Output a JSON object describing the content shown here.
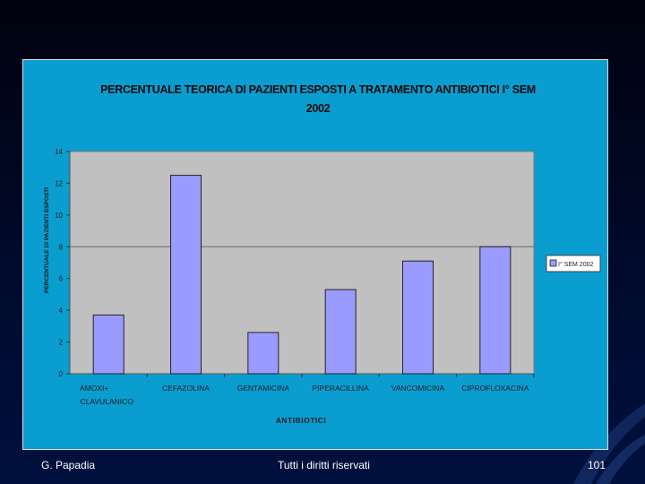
{
  "chart_data": {
    "type": "bar",
    "title_line1": "PERCENTUALE TEORICA DI PAZIENTI ESPOSTI A TRATAMENTO ANTIBIOTICI I° SEM",
    "title_line2": "2002",
    "xlabel": "ANTIBIOTICI",
    "ylabel": "PERCENTUALE DI PAZIENTI ESPOSTI",
    "categories": [
      "AMOXI+ CLAVULANICO",
      "CEFAZOLINA",
      "GENTAMICINA",
      "PIPERACILLINA",
      "VANCOMICINA",
      "CIPROFLOXACINA"
    ],
    "category_lines": [
      [
        "AMOXI+",
        "CLAVULANICO"
      ],
      [
        "CEFAZOLINA"
      ],
      [
        "GENTAMICINA"
      ],
      [
        "PIPERACILLINA"
      ],
      [
        "VANCOMICINA"
      ],
      [
        "CIPROFLOXACINA"
      ]
    ],
    "series": [
      {
        "name": "I° SEM 2002",
        "values": [
          3.7,
          12.5,
          2.6,
          5.3,
          7.1,
          8.0
        ]
      }
    ],
    "ylim": [
      0,
      14
    ],
    "yticks": [
      0,
      2,
      4,
      6,
      8,
      10,
      12,
      14
    ],
    "gridlines_at": [
      8
    ],
    "legend_position": "right",
    "colors": {
      "bar_fill": "#9b9bff",
      "plot_background": "#c0c0c0",
      "chart_background": "#0a9dd0"
    }
  },
  "footer": {
    "author": "G. Papadia",
    "rights": "Tutti i diritti riservati",
    "page_number": "101"
  }
}
